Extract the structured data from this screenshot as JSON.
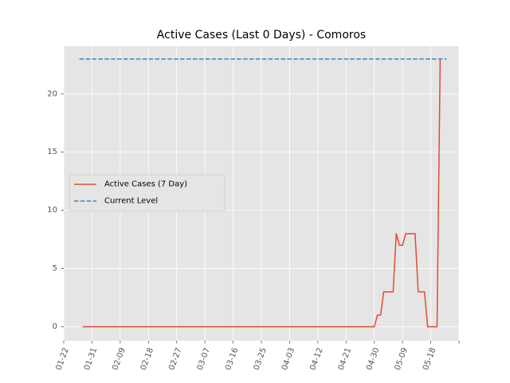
{
  "chart_data": {
    "type": "line",
    "title": "Active Cases (Last 0 Days) - Comoros",
    "xlabel": "",
    "ylabel": "",
    "x_axis": "date",
    "xlim": [
      "2020-01-22",
      "2020-05-27"
    ],
    "ylim": [
      -1.2,
      24.1
    ],
    "x_ticks": [
      "2020-01-22",
      "2020-01-31",
      "2020-02-09",
      "2020-02-18",
      "2020-02-27",
      "2020-03-07",
      "2020-03-16",
      "2020-03-25",
      "2020-04-03",
      "2020-04-12",
      "2020-04-21",
      "2020-04-30",
      "2020-05-09",
      "2020-05-18",
      "2020-05-27"
    ],
    "x_tick_labels": [
      "01-22",
      "01-31",
      "02-09",
      "02-18",
      "02-27",
      "03-07",
      "03-16",
      "03-25",
      "04-03",
      "04-12",
      "04-21",
      "04-30",
      "05-09",
      "05-18",
      ""
    ],
    "y_ticks": [
      0,
      5,
      10,
      15,
      20
    ],
    "y_tick_labels": [
      "0",
      "5",
      "10",
      "15",
      "20"
    ],
    "grid": true,
    "legend_position": "center-left",
    "series": [
      {
        "name": "Active Cases (7 Day)",
        "color": "#E24A33",
        "style": "solid",
        "points": [
          [
            "2020-01-28",
            0
          ],
          [
            "2020-04-30",
            0
          ],
          [
            "2020-05-01",
            1
          ],
          [
            "2020-05-02",
            1
          ],
          [
            "2020-05-03",
            3
          ],
          [
            "2020-05-06",
            3
          ],
          [
            "2020-05-07",
            8
          ],
          [
            "2020-05-08",
            7
          ],
          [
            "2020-05-09",
            7
          ],
          [
            "2020-05-10",
            8
          ],
          [
            "2020-05-13",
            8
          ],
          [
            "2020-05-14",
            3
          ],
          [
            "2020-05-16",
            3
          ],
          [
            "2020-05-17",
            0
          ],
          [
            "2020-05-20",
            0
          ],
          [
            "2020-05-21",
            23
          ]
        ]
      },
      {
        "name": "Current Level",
        "color": "#348ABD",
        "style": "dashed",
        "points": [
          [
            "2020-01-27",
            23
          ],
          [
            "2020-05-23",
            23
          ]
        ]
      }
    ]
  }
}
